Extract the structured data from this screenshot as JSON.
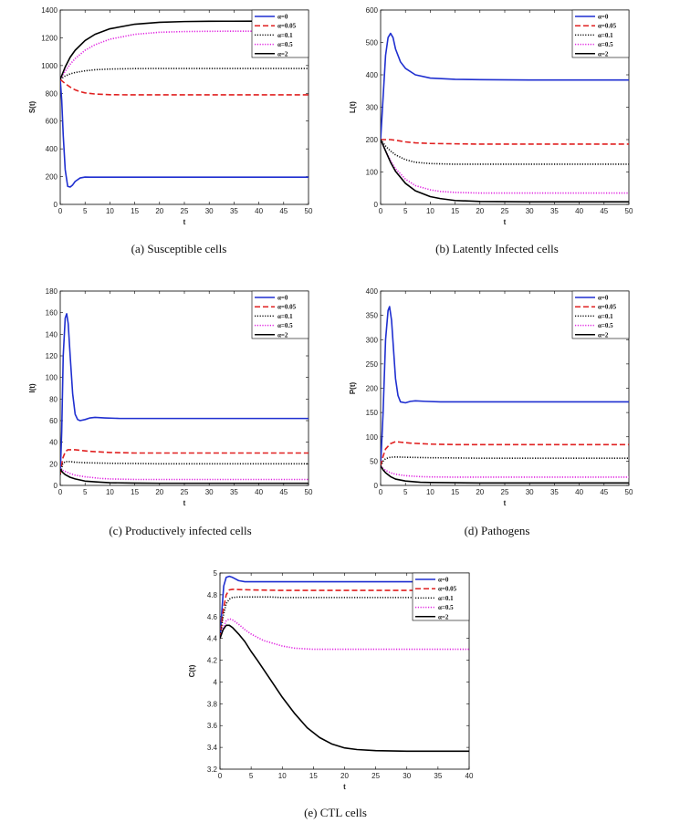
{
  "legend_labels": [
    "α=0",
    "α=0.05",
    "α=0.1",
    "α=0.5",
    "α=2"
  ],
  "series_styles": [
    {
      "color": "#1f2fd0",
      "dash": "solid"
    },
    {
      "color": "#e02020",
      "dash": "dashed"
    },
    {
      "color": "#111111",
      "dash": "dotted"
    },
    {
      "color": "#e020e0",
      "dash": "dotted"
    },
    {
      "color": "#000000",
      "dash": "solid"
    }
  ],
  "chart_data": [
    {
      "id": "a",
      "type": "line",
      "caption": "(a)  Susceptible cells",
      "xlabel": "t",
      "ylabel": "S(t)",
      "xlim": [
        0,
        50
      ],
      "ylim": [
        0,
        1400
      ],
      "xticks": [
        0,
        5,
        10,
        15,
        20,
        25,
        30,
        35,
        40,
        45,
        50
      ],
      "yticks": [
        0,
        200,
        400,
        600,
        800,
        1000,
        1200,
        1400
      ],
      "legend": "top-right",
      "series": [
        {
          "name": "α=0",
          "x": [
            0,
            0.3,
            0.6,
            1,
            1.5,
            2,
            2.5,
            3,
            4,
            5,
            6,
            8,
            10,
            20,
            30,
            40,
            50
          ],
          "y": [
            900,
            750,
            500,
            250,
            130,
            125,
            140,
            165,
            190,
            197,
            196,
            196,
            196,
            196,
            196,
            196,
            196
          ]
        },
        {
          "name": "α=0.05",
          "x": [
            0,
            1,
            2,
            3,
            4,
            5,
            7,
            10,
            15,
            20,
            30,
            40,
            50
          ],
          "y": [
            900,
            870,
            845,
            825,
            812,
            803,
            795,
            790,
            789,
            789,
            789,
            789,
            789
          ]
        },
        {
          "name": "α=0.1",
          "x": [
            0,
            1,
            2,
            3,
            5,
            7,
            10,
            15,
            20,
            30,
            40,
            50
          ],
          "y": [
            900,
            925,
            940,
            950,
            962,
            970,
            975,
            978,
            979,
            979,
            979,
            979
          ]
        },
        {
          "name": "α=0.5",
          "x": [
            0,
            1,
            2,
            3,
            5,
            7,
            10,
            15,
            20,
            25,
            30,
            40,
            50
          ],
          "y": [
            900,
            960,
            1010,
            1050,
            1110,
            1150,
            1190,
            1225,
            1240,
            1245,
            1247,
            1248,
            1248
          ]
        },
        {
          "name": "α=2",
          "x": [
            0,
            1,
            2,
            3,
            5,
            7,
            10,
            15,
            20,
            25,
            30,
            40,
            50
          ],
          "y": [
            900,
            990,
            1060,
            1110,
            1180,
            1225,
            1265,
            1298,
            1312,
            1317,
            1319,
            1320,
            1320
          ]
        }
      ]
    },
    {
      "id": "b",
      "type": "line",
      "caption": "(b)  Latently Infected cells",
      "xlabel": "t",
      "ylabel": "L(t)",
      "xlim": [
        0,
        50
      ],
      "ylim": [
        0,
        600
      ],
      "xticks": [
        0,
        5,
        10,
        15,
        20,
        25,
        30,
        35,
        40,
        45,
        50
      ],
      "yticks": [
        0,
        100,
        200,
        300,
        400,
        500,
        600
      ],
      "legend": "top-right",
      "series": [
        {
          "name": "α=0",
          "x": [
            0,
            0.5,
            1,
            1.5,
            2,
            2.5,
            3,
            4,
            5,
            7,
            10,
            15,
            20,
            30,
            40,
            50
          ],
          "y": [
            200,
            330,
            460,
            515,
            528,
            515,
            480,
            440,
            420,
            400,
            390,
            386,
            385,
            384,
            384,
            384
          ]
        },
        {
          "name": "α=0.05",
          "x": [
            0,
            1,
            2,
            3,
            5,
            7,
            10,
            15,
            20,
            30,
            40,
            50
          ],
          "y": [
            200,
            200,
            200,
            198,
            193,
            190,
            188,
            187,
            186,
            186,
            186,
            186
          ]
        },
        {
          "name": "α=0.1",
          "x": [
            0,
            1,
            2,
            3,
            5,
            7,
            10,
            15,
            20,
            30,
            40,
            50
          ],
          "y": [
            200,
            180,
            165,
            153,
            138,
            130,
            126,
            124,
            124,
            124,
            124,
            124
          ]
        },
        {
          "name": "α=0.5",
          "x": [
            0,
            1,
            2,
            3,
            5,
            7,
            10,
            12,
            15,
            20,
            30,
            40,
            50
          ],
          "y": [
            200,
            165,
            135,
            110,
            78,
            58,
            45,
            40,
            37,
            35,
            35,
            35,
            35
          ]
        },
        {
          "name": "α=2",
          "x": [
            0,
            1,
            2,
            3,
            5,
            7,
            10,
            12,
            15,
            20,
            30,
            40,
            50
          ],
          "y": [
            200,
            165,
            130,
            102,
            65,
            42,
            24,
            18,
            12,
            9,
            8,
            8,
            8
          ]
        }
      ]
    },
    {
      "id": "c",
      "type": "line",
      "caption": "(c)  Productively infected cells",
      "xlabel": "t",
      "ylabel": "I(t)",
      "xlim": [
        0,
        50
      ],
      "ylim": [
        0,
        180
      ],
      "xticks": [
        0,
        5,
        10,
        15,
        20,
        25,
        30,
        35,
        40,
        45,
        50
      ],
      "yticks": [
        0,
        20,
        40,
        60,
        80,
        100,
        120,
        140,
        160,
        180
      ],
      "legend": "top-right",
      "series": [
        {
          "name": "α=0",
          "x": [
            0,
            0.3,
            0.6,
            1,
            1.3,
            1.6,
            2,
            2.5,
            3,
            3.5,
            4,
            5,
            6,
            7,
            9,
            12,
            20,
            30,
            40,
            50
          ],
          "y": [
            10,
            50,
            120,
            155,
            159,
            150,
            120,
            85,
            66,
            61,
            60,
            61,
            62.5,
            63,
            62.5,
            62,
            62,
            62,
            62,
            62
          ]
        },
        {
          "name": "α=0.05",
          "x": [
            0,
            0.5,
            1,
            1.5,
            2,
            3,
            4,
            6,
            10,
            15,
            20,
            30,
            40,
            50
          ],
          "y": [
            10,
            25,
            31,
            33,
            33,
            33,
            32.5,
            31.5,
            30.5,
            30,
            30,
            30,
            30,
            30
          ]
        },
        {
          "name": "α=0.1",
          "x": [
            0,
            0.5,
            1,
            2,
            3,
            5,
            10,
            15,
            20,
            30,
            40,
            50
          ],
          "y": [
            10,
            20,
            22,
            22,
            21.5,
            21,
            20.5,
            20.3,
            20,
            20,
            20,
            20
          ]
        },
        {
          "name": "α=0.5",
          "x": [
            0,
            0.5,
            1,
            2,
            3,
            5,
            8,
            10,
            15,
            20,
            30,
            40,
            50
          ],
          "y": [
            15,
            14,
            13,
            11,
            9.5,
            8,
            6.5,
            6,
            5.5,
            5.5,
            5.5,
            5.5,
            5.5
          ]
        },
        {
          "name": "α=2",
          "x": [
            0,
            0.5,
            1,
            2,
            3,
            5,
            8,
            10,
            15,
            20,
            30,
            40,
            50
          ],
          "y": [
            15,
            12,
            10,
            7.5,
            6,
            4,
            3,
            2.5,
            2.2,
            2,
            2,
            2,
            2
          ]
        }
      ]
    },
    {
      "id": "d",
      "type": "line",
      "caption": "(d)  Pathogens",
      "xlabel": "t",
      "ylabel": "P(t)",
      "xlim": [
        0,
        50
      ],
      "ylim": [
        0,
        400
      ],
      "xticks": [
        0,
        5,
        10,
        15,
        20,
        25,
        30,
        35,
        40,
        45,
        50
      ],
      "yticks": [
        0,
        50,
        100,
        150,
        200,
        250,
        300,
        350,
        400
      ],
      "legend": "top-right",
      "series": [
        {
          "name": "α=0",
          "x": [
            0,
            0.5,
            1,
            1.5,
            1.8,
            2.2,
            2.6,
            3,
            3.5,
            4,
            5,
            6,
            7,
            9,
            12,
            20,
            30,
            40,
            50
          ],
          "y": [
            40,
            150,
            300,
            360,
            368,
            340,
            280,
            220,
            185,
            172,
            170,
            173,
            174,
            173,
            172,
            172,
            172,
            172,
            172
          ]
        },
        {
          "name": "α=0.05",
          "x": [
            0,
            0.5,
            1,
            2,
            3,
            4,
            6,
            10,
            15,
            20,
            30,
            40,
            50
          ],
          "y": [
            40,
            60,
            75,
            86,
            90,
            89,
            87,
            85,
            84,
            84,
            84,
            84,
            84
          ]
        },
        {
          "name": "α=0.1",
          "x": [
            0,
            0.5,
            1,
            2,
            3,
            5,
            10,
            15,
            20,
            30,
            40,
            50
          ],
          "y": [
            40,
            50,
            55,
            58,
            58.5,
            58,
            57,
            56.5,
            56,
            56,
            56,
            56
          ]
        },
        {
          "name": "α=0.5",
          "x": [
            0,
            0.5,
            1,
            2,
            3,
            5,
            8,
            10,
            15,
            20,
            30,
            40,
            50
          ],
          "y": [
            40,
            35,
            31,
            26,
            23,
            20,
            18,
            17.5,
            17,
            17,
            17,
            17,
            17
          ]
        },
        {
          "name": "α=2",
          "x": [
            0,
            0.5,
            1,
            2,
            3,
            5,
            8,
            10,
            15,
            20,
            30,
            40,
            50
          ],
          "y": [
            40,
            32,
            26,
            18,
            13,
            9,
            6.5,
            6,
            5.5,
            5,
            5,
            5,
            5
          ]
        }
      ]
    },
    {
      "id": "e",
      "type": "line",
      "caption": "(e)  CTL cells",
      "xlabel": "t",
      "ylabel": "C(t)",
      "xlim": [
        0,
        40
      ],
      "ylim": [
        3.2,
        5
      ],
      "xticks": [
        0,
        5,
        10,
        15,
        20,
        25,
        30,
        35,
        40
      ],
      "yticks": [
        3.2,
        3.4,
        3.6,
        3.8,
        4,
        4.2,
        4.4,
        4.6,
        4.8,
        5
      ],
      "legend": "top-right",
      "series": [
        {
          "name": "α=0",
          "x": [
            0,
            0.3,
            0.6,
            1,
            1.5,
            2,
            3,
            4,
            5,
            7,
            10,
            15,
            20,
            30,
            40
          ],
          "y": [
            4.4,
            4.65,
            4.88,
            4.96,
            4.97,
            4.96,
            4.93,
            4.92,
            4.92,
            4.92,
            4.92,
            4.92,
            4.92,
            4.92,
            4.92
          ]
        },
        {
          "name": "α=0.05",
          "x": [
            0,
            0.5,
            1,
            1.5,
            2,
            3,
            5,
            8,
            10,
            15,
            20,
            30,
            40
          ],
          "y": [
            4.4,
            4.65,
            4.8,
            4.845,
            4.85,
            4.848,
            4.845,
            4.842,
            4.84,
            4.84,
            4.84,
            4.84,
            4.84
          ]
        },
        {
          "name": "α=0.1",
          "x": [
            0,
            0.5,
            1,
            1.5,
            2,
            3,
            5,
            8,
            10,
            15,
            20,
            30,
            40
          ],
          "y": [
            4.4,
            4.6,
            4.72,
            4.76,
            4.775,
            4.78,
            4.78,
            4.78,
            4.775,
            4.775,
            4.775,
            4.775,
            4.775
          ]
        },
        {
          "name": "α=0.5",
          "x": [
            0,
            0.5,
            1,
            1.5,
            2,
            3,
            4,
            5,
            7,
            10,
            12,
            15,
            20,
            30,
            40
          ],
          "y": [
            4.4,
            4.5,
            4.56,
            4.58,
            4.57,
            4.53,
            4.48,
            4.44,
            4.38,
            4.33,
            4.31,
            4.3,
            4.3,
            4.3,
            4.3
          ]
        },
        {
          "name": "α=2",
          "x": [
            0,
            0.5,
            1,
            1.5,
            2,
            3,
            4,
            5,
            6,
            8,
            10,
            12,
            14,
            16,
            18,
            20,
            22,
            25,
            30,
            40
          ],
          "y": [
            4.4,
            4.48,
            4.52,
            4.52,
            4.5,
            4.44,
            4.37,
            4.28,
            4.2,
            4.03,
            3.86,
            3.71,
            3.58,
            3.49,
            3.43,
            3.395,
            3.38,
            3.37,
            3.365,
            3.365
          ]
        }
      ]
    }
  ]
}
